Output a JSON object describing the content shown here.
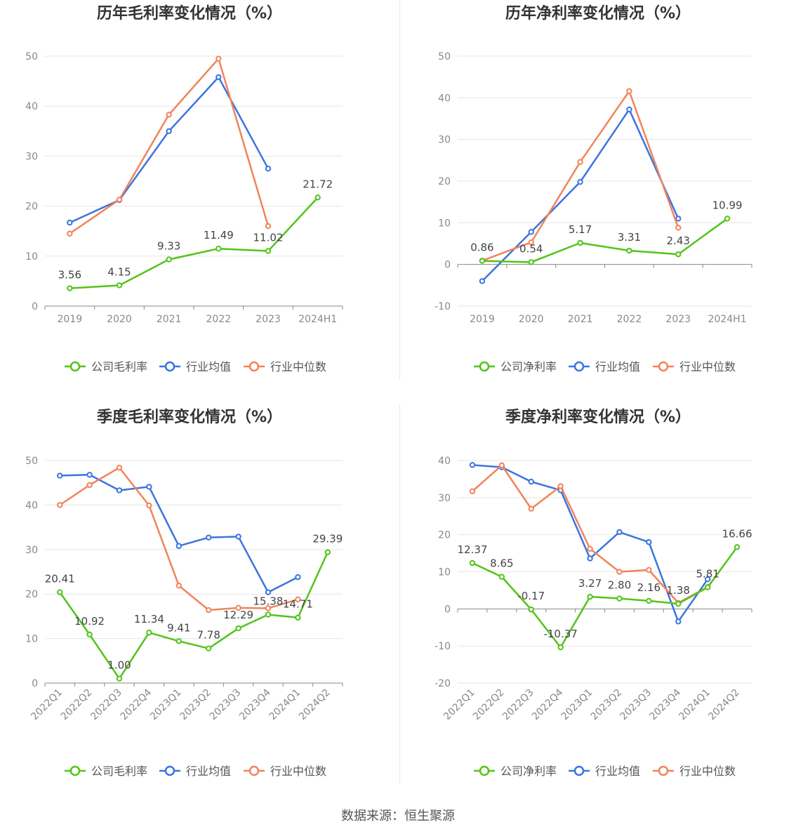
{
  "source_label": "数据来源：恒生聚源",
  "colors": {
    "company": "#52c41a",
    "avg": "#3b74e0",
    "median": "#f0845a"
  },
  "chart_data": [
    {
      "type": "line",
      "title": "历年毛利率变化情况（%）",
      "categories": [
        "2019",
        "2020",
        "2021",
        "2022",
        "2023",
        "2024H1"
      ],
      "ylim": [
        0,
        50
      ],
      "yticks": [
        0,
        10,
        20,
        30,
        40,
        50
      ],
      "legend": "bottom",
      "series": [
        {
          "name": "公司毛利率",
          "values": [
            3.56,
            4.15,
            9.33,
            11.49,
            11.02,
            21.72
          ],
          "labels": [
            "3.56",
            "4.15",
            "9.33",
            "11.49",
            "11.02",
            "21.72"
          ]
        },
        {
          "name": "行业均值",
          "values": [
            16.7,
            21.2,
            35.0,
            45.8,
            27.5,
            null
          ]
        },
        {
          "name": "行业中位数",
          "values": [
            14.5,
            21.3,
            38.3,
            49.5,
            16.0,
            null
          ]
        }
      ]
    },
    {
      "type": "line",
      "title": "历年净利率变化情况（%）",
      "categories": [
        "2019",
        "2020",
        "2021",
        "2022",
        "2023",
        "2024H1"
      ],
      "ylim": [
        -10,
        50
      ],
      "yticks": [
        -10,
        0,
        10,
        20,
        30,
        40,
        50
      ],
      "legend": "bottom",
      "series": [
        {
          "name": "公司净利率",
          "values": [
            0.86,
            0.54,
            5.17,
            3.31,
            2.43,
            10.99
          ],
          "labels": [
            "0.86",
            "0.54",
            "5.17",
            "3.31",
            "2.43",
            "10.99"
          ]
        },
        {
          "name": "行业均值",
          "values": [
            -4.0,
            7.8,
            19.8,
            37.2,
            11.0,
            null
          ]
        },
        {
          "name": "行业中位数",
          "values": [
            0.9,
            5.3,
            24.6,
            41.6,
            8.8,
            null
          ]
        }
      ]
    },
    {
      "type": "line",
      "title": "季度毛利率变化情况（%）",
      "categories": [
        "2022Q1",
        "2022Q2",
        "2022Q3",
        "2022Q4",
        "2023Q1",
        "2023Q2",
        "2023Q3",
        "2023Q4",
        "2024Q1",
        "2024Q2"
      ],
      "ylim": [
        0,
        50
      ],
      "yticks": [
        0,
        10,
        20,
        30,
        40,
        50
      ],
      "legend": "bottom",
      "series": [
        {
          "name": "公司毛利率",
          "values": [
            20.41,
            10.92,
            1.0,
            11.34,
            9.41,
            7.78,
            12.29,
            15.38,
            14.71,
            29.39
          ],
          "labels": [
            "20.41",
            "10.92",
            "1.00",
            "11.34",
            "9.41",
            "7.78",
            "12.29",
            "15.38",
            "14.71",
            "29.39"
          ]
        },
        {
          "name": "行业均值",
          "values": [
            46.6,
            46.8,
            43.3,
            44.1,
            30.8,
            32.7,
            32.9,
            20.4,
            23.8,
            null
          ]
        },
        {
          "name": "行业中位数",
          "values": [
            40.0,
            44.5,
            48.4,
            39.9,
            21.9,
            16.4,
            16.9,
            16.8,
            18.8,
            null
          ]
        }
      ]
    },
    {
      "type": "line",
      "title": "季度净利率变化情况（%）",
      "categories": [
        "2022Q1",
        "2022Q2",
        "2022Q3",
        "2022Q4",
        "2023Q1",
        "2023Q2",
        "2023Q3",
        "2023Q4",
        "2024Q1",
        "2024Q2"
      ],
      "ylim": [
        -20,
        40
      ],
      "yticks": [
        -20,
        -10,
        0,
        10,
        20,
        30,
        40
      ],
      "legend": "bottom",
      "series": [
        {
          "name": "公司净利率",
          "values": [
            12.37,
            8.65,
            -0.17,
            -10.37,
            3.27,
            2.8,
            2.16,
            1.38,
            5.81,
            16.66
          ],
          "labels": [
            "12.37",
            "8.65",
            "-0.17",
            "-10.37",
            "3.27",
            "2.80",
            "2.16",
            "1.38",
            "5.81",
            "16.66"
          ]
        },
        {
          "name": "行业均值",
          "values": [
            38.8,
            38.2,
            34.3,
            32.0,
            13.6,
            20.7,
            18.0,
            -3.4,
            8.0,
            null
          ]
        },
        {
          "name": "行业中位数",
          "values": [
            31.7,
            38.7,
            27.0,
            33.1,
            16.2,
            10.0,
            10.5,
            1.6,
            5.9,
            null
          ]
        }
      ]
    }
  ]
}
